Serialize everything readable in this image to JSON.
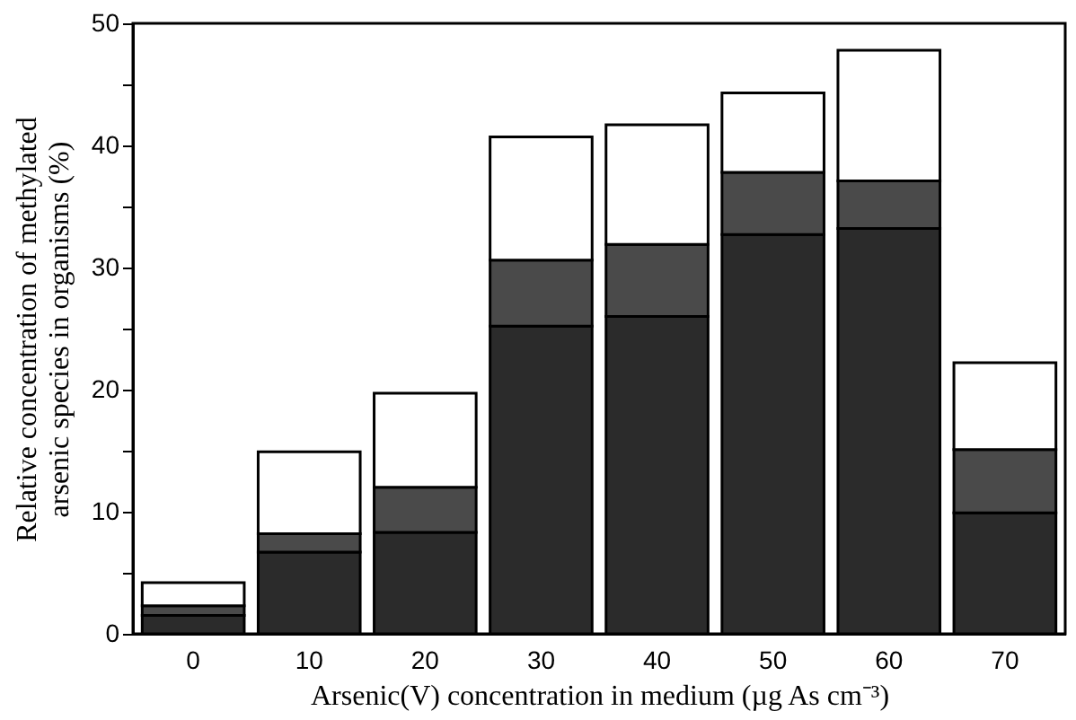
{
  "chart_data": {
    "type": "bar",
    "stacked": true,
    "xlabel": "Arsenic(V) concentration in medium (µg As cm⁻³)",
    "ylabel": "Relative concentration of methylated arsenic species in organisms (%)",
    "categories": [
      "0",
      "10",
      "20",
      "30",
      "40",
      "50",
      "60",
      "70"
    ],
    "series": [
      {
        "color": "#2b2b2b",
        "values": [
          1.5,
          6.7,
          8.3,
          25.2,
          26.0,
          32.7,
          33.2,
          9.9
        ]
      },
      {
        "color": "#4a4a4a",
        "values": [
          0.8,
          1.5,
          3.7,
          5.4,
          5.9,
          5.1,
          3.9,
          5.2
        ]
      },
      {
        "color": "#ffffff",
        "values": [
          1.9,
          6.7,
          7.7,
          10.1,
          9.8,
          6.5,
          10.7,
          7.1
        ]
      }
    ],
    "ylim": [
      0,
      50
    ],
    "yticks": [
      0,
      {
        "value": 5,
        "label": null
      },
      10,
      {
        "value": 15,
        "label": null
      },
      20,
      {
        "value": 25,
        "label": null
      },
      30,
      {
        "value": 35,
        "label": null
      },
      40,
      {
        "value": 45,
        "label": null
      },
      50
    ],
    "grid": false
  }
}
